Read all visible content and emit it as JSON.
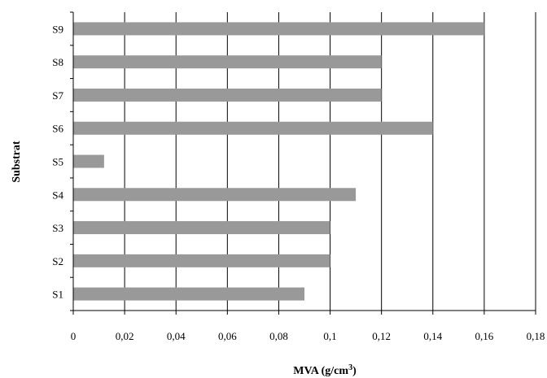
{
  "chart_data": {
    "type": "bar",
    "orientation": "horizontal",
    "categories": [
      "S1",
      "S2",
      "S3",
      "S4",
      "S5",
      "S6",
      "S7",
      "S8",
      "S9"
    ],
    "values": [
      0.09,
      0.1,
      0.1,
      0.11,
      0.012,
      0.14,
      0.12,
      0.12,
      0.16
    ],
    "xlabel": "MVA (g/cm",
    "xlabel_sup": "3",
    "xlabel_close": ")",
    "ylabel": "Substrat",
    "xlim": [
      0,
      0.18
    ],
    "xticks": [
      "0",
      "0,02",
      "0,04",
      "0,06",
      "0,08",
      "0,1",
      "0,12",
      "0,14",
      "0,16",
      "0,18"
    ],
    "grid": "vertical",
    "bar_color": "#999999"
  }
}
